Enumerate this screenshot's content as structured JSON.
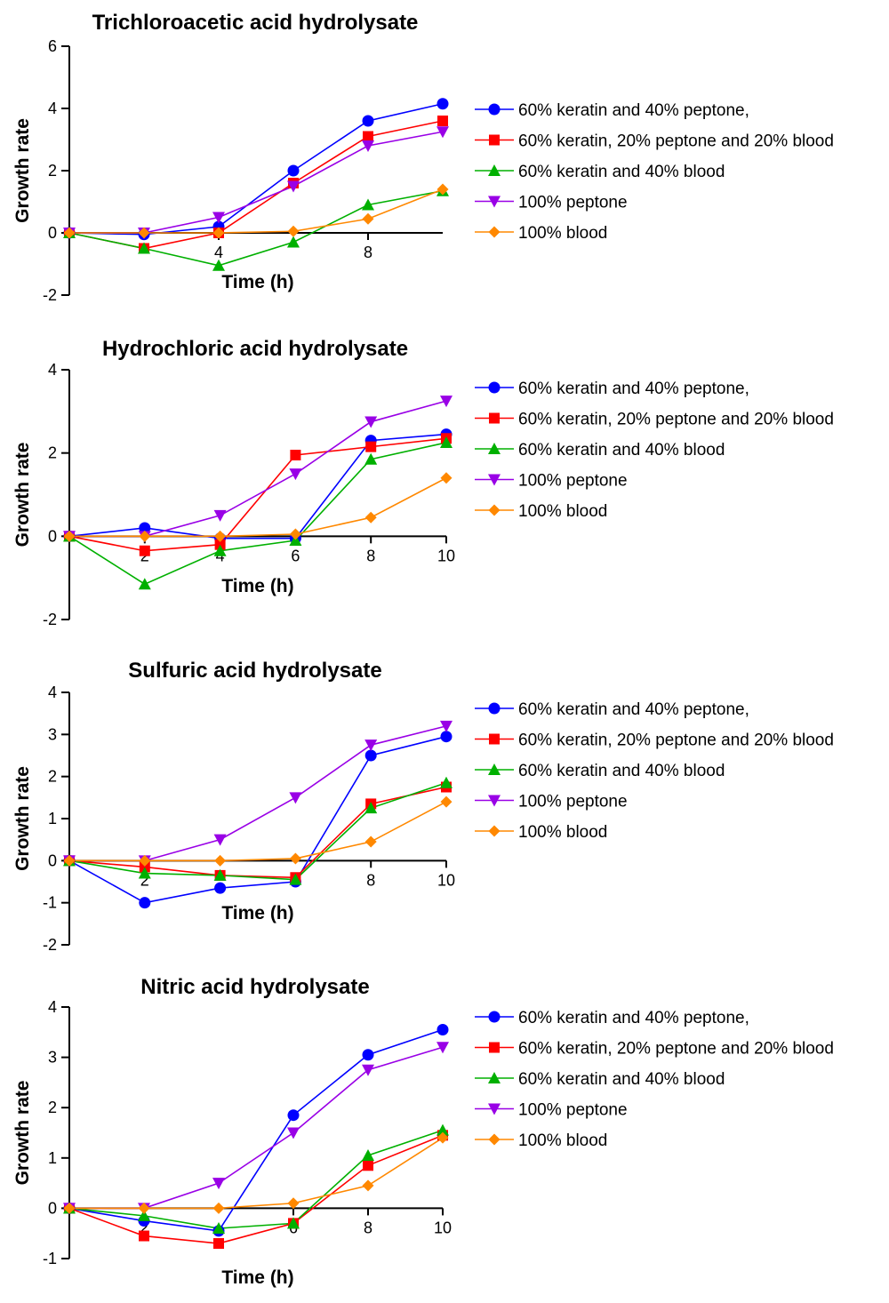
{
  "legend": {
    "labels": [
      "60% keratin and 40% peptone,",
      "60% keratin, 20% peptone and 20% blood",
      "60% keratin and 40% blood",
      "100% peptone",
      "100% blood"
    ]
  },
  "series_styles": [
    {
      "color": "#0000ff",
      "marker": "circle"
    },
    {
      "color": "#ff0000",
      "marker": "square"
    },
    {
      "color": "#00b000",
      "marker": "triangle-up"
    },
    {
      "color": "#9900e6",
      "marker": "triangle-down"
    },
    {
      "color": "#ff8800",
      "marker": "diamond"
    }
  ],
  "chart_data": [
    {
      "type": "line",
      "title": "Trichloroacetic acid hydrolysate",
      "xlabel": "Time (h)",
      "ylabel": "Growth rate",
      "xlim": [
        0,
        10
      ],
      "ylim": [
        -2,
        6
      ],
      "xticks": [
        4,
        8
      ],
      "yticks": [
        -2,
        0,
        2,
        4,
        6
      ],
      "x": [
        0,
        2,
        4,
        6,
        8,
        10
      ],
      "series": [
        {
          "name": "60% keratin and 40% peptone,",
          "values": [
            0,
            -0.05,
            0.2,
            2.0,
            3.6,
            4.15
          ]
        },
        {
          "name": "60% keratin, 20% peptone and 20% blood",
          "values": [
            0,
            -0.5,
            0.0,
            1.6,
            3.1,
            3.6
          ]
        },
        {
          "name": "60% keratin and 40% blood",
          "values": [
            0,
            -0.5,
            -1.05,
            -0.3,
            0.9,
            1.35
          ]
        },
        {
          "name": "100% peptone",
          "values": [
            0,
            0.0,
            0.5,
            1.5,
            2.8,
            3.25
          ]
        },
        {
          "name": "100% blood",
          "values": [
            0,
            0.0,
            0.0,
            0.05,
            0.45,
            1.4
          ]
        }
      ]
    },
    {
      "type": "line",
      "title": "Hydrochloric acid hydrolysate",
      "xlabel": "Time (h)",
      "ylabel": "Growth rate",
      "xlim": [
        0,
        10
      ],
      "ylim": [
        -2,
        4
      ],
      "xticks": [
        2,
        4,
        6,
        8,
        10
      ],
      "yticks": [
        -2,
        0,
        2,
        4
      ],
      "x": [
        0,
        2,
        4,
        6,
        8,
        10
      ],
      "series": [
        {
          "name": "60% keratin and 40% peptone,",
          "values": [
            0,
            0.2,
            -0.05,
            -0.05,
            2.3,
            2.45
          ]
        },
        {
          "name": "60% keratin, 20% peptone and 20% blood",
          "values": [
            0,
            -0.35,
            -0.2,
            1.95,
            2.15,
            2.35
          ]
        },
        {
          "name": "60% keratin and 40% blood",
          "values": [
            0,
            -1.15,
            -0.35,
            -0.1,
            1.85,
            2.25
          ]
        },
        {
          "name": "100% peptone",
          "values": [
            0,
            0.0,
            0.5,
            1.5,
            2.75,
            3.25
          ]
        },
        {
          "name": "100% blood",
          "values": [
            0,
            0.0,
            0.0,
            0.05,
            0.45,
            1.4
          ]
        }
      ]
    },
    {
      "type": "line",
      "title": "Sulfuric acid hydrolysate",
      "xlabel": "Time (h)",
      "ylabel": "Growth rate",
      "xlim": [
        0,
        10
      ],
      "ylim": [
        -2,
        4
      ],
      "xticks": [
        2,
        8,
        10
      ],
      "yticks": [
        -2,
        -1,
        0,
        1,
        2,
        3,
        4
      ],
      "x": [
        0,
        2,
        4,
        6,
        8,
        10
      ],
      "series": [
        {
          "name": "60% keratin and 40% peptone,",
          "values": [
            0,
            -1.0,
            -0.65,
            -0.5,
            2.5,
            2.95
          ]
        },
        {
          "name": "60% keratin, 20% peptone and 20% blood",
          "values": [
            0,
            -0.15,
            -0.35,
            -0.4,
            1.35,
            1.75
          ]
        },
        {
          "name": "60% keratin and 40% blood",
          "values": [
            0,
            -0.3,
            -0.35,
            -0.45,
            1.25,
            1.85
          ]
        },
        {
          "name": "100% peptone",
          "values": [
            0,
            0.0,
            0.5,
            1.5,
            2.75,
            3.2
          ]
        },
        {
          "name": "100% blood",
          "values": [
            0,
            0.0,
            0.0,
            0.05,
            0.45,
            1.4
          ]
        }
      ]
    },
    {
      "type": "line",
      "title": "Nitric acid hydrolysate",
      "xlabel": "Time (h)",
      "ylabel": "Growth rate",
      "xlim": [
        0,
        10
      ],
      "ylim": [
        -1,
        4
      ],
      "xticks": [
        2,
        6,
        8,
        10
      ],
      "yticks": [
        -1,
        0,
        1,
        2,
        3,
        4
      ],
      "x": [
        0,
        2,
        4,
        6,
        8,
        10
      ],
      "series": [
        {
          "name": "60% keratin and 40% peptone,",
          "values": [
            0,
            -0.25,
            -0.45,
            1.85,
            3.05,
            3.55
          ]
        },
        {
          "name": "60% keratin, 20% peptone and 20% blood",
          "values": [
            0,
            -0.55,
            -0.7,
            -0.3,
            0.85,
            1.45
          ]
        },
        {
          "name": "60% keratin and 40% blood",
          "values": [
            0,
            -0.15,
            -0.4,
            -0.3,
            1.05,
            1.55
          ]
        },
        {
          "name": "100% peptone",
          "values": [
            0,
            0.0,
            0.5,
            1.5,
            2.75,
            3.2
          ]
        },
        {
          "name": "100% blood",
          "values": [
            0,
            0.0,
            0.0,
            0.1,
            0.45,
            1.4
          ]
        }
      ]
    }
  ]
}
